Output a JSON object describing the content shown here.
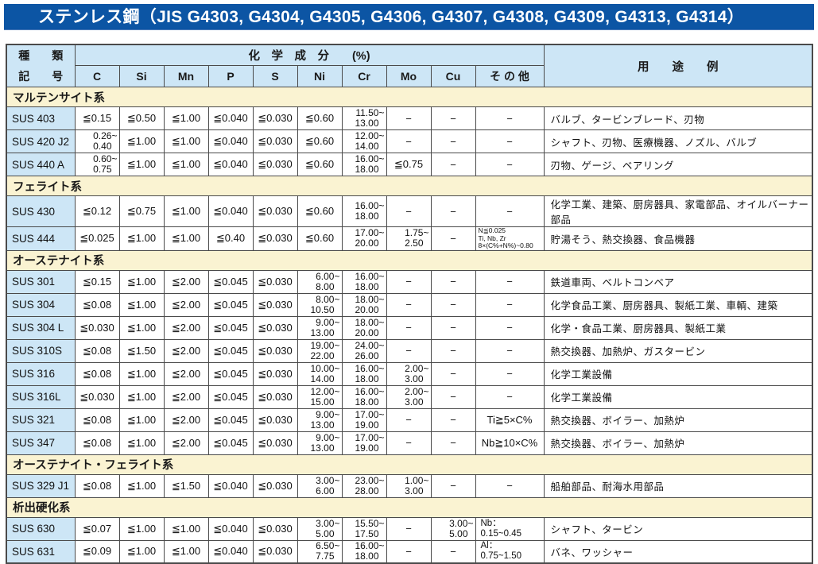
{
  "title": "ステンレス鋼（JIS G4303, G4304, G4305, G4306, G4307, G4308, G4309, G4313, G4314）",
  "colors": {
    "title_bar": "#0c55a4",
    "header_blue": "#cde6f6",
    "section_yellow": "#faf3d2",
    "border": "#4a4a4a"
  },
  "table": {
    "header": {
      "kind": "種　　類",
      "symbol": "記　　号",
      "chem": "化　学　成　分　　(%)",
      "use": "用　　途　　例",
      "elements": [
        "C",
        "Si",
        "Mn",
        "P",
        "S",
        "Ni",
        "Cr",
        "Mo",
        "Cu",
        "そ の 他"
      ]
    },
    "sections": [
      {
        "name": "マルテンサイト系",
        "rows": [
          {
            "code": "SUS 403",
            "c": "≦0.15",
            "si": "≦0.50",
            "mn": "≦1.00",
            "p": "≦0.040",
            "s": "≦0.030",
            "ni": "≦0.60",
            "cr": {
              "hi": "11.50~",
              "lo": "13.00"
            },
            "mo": "−",
            "cu": "−",
            "other": "−",
            "use": "バルブ、タービンブレード、刃物"
          },
          {
            "code": "SUS 420 J2",
            "c": {
              "hi": "0.26~",
              "lo": "0.40"
            },
            "si": "≦1.00",
            "mn": "≦1.00",
            "p": "≦0.040",
            "s": "≦0.030",
            "ni": "≦0.60",
            "cr": {
              "hi": "12.00~",
              "lo": "14.00"
            },
            "mo": "−",
            "cu": "−",
            "other": "−",
            "use": "シャフト、刃物、医療機器、ノズル、バルブ"
          },
          {
            "code": "SUS 440 A",
            "c": {
              "hi": "0.60~",
              "lo": "0.75"
            },
            "si": "≦1.00",
            "mn": "≦1.00",
            "p": "≦0.040",
            "s": "≦0.030",
            "ni": "≦0.60",
            "cr": {
              "hi": "16.00~",
              "lo": "18.00"
            },
            "mo": "≦0.75",
            "cu": "−",
            "other": "−",
            "use": "刃物、ゲージ、ベアリング"
          }
        ]
      },
      {
        "name": "フェライト系",
        "rows": [
          {
            "code": "SUS 430",
            "c": "≦0.12",
            "si": "≦0.75",
            "mn": "≦1.00",
            "p": "≦0.040",
            "s": "≦0.030",
            "ni": "≦0.60",
            "cr": {
              "hi": "16.00~",
              "lo": "18.00"
            },
            "mo": "−",
            "cu": "−",
            "other": "−",
            "use": "化学工業、建築、厨房器具、家電部品、オイルバーナー部品"
          },
          {
            "code": "SUS 444",
            "c": "≦0.025",
            "si": "≦1.00",
            "mn": "≦1.00",
            "p": "≦0.40",
            "s": "≦0.030",
            "ni": "≦0.60",
            "cr": {
              "hi": "17.00~",
              "lo": "20.00"
            },
            "mo": {
              "hi": "1.75~",
              "lo": "2.50"
            },
            "cu": "−",
            "other": {
              "lines": [
                "N≦0.025",
                "Ti, Nb, Zr",
                "8×(C%+N%)~0.80"
              ],
              "small": true
            },
            "use": "貯湯そう、熱交換器、食品機器"
          }
        ]
      },
      {
        "name": "オーステナイト系",
        "rows": [
          {
            "code": "SUS 301",
            "c": "≦0.15",
            "si": "≦1.00",
            "mn": "≦2.00",
            "p": "≦0.045",
            "s": "≦0.030",
            "ni": {
              "hi": "6.00~",
              "lo": "8.00"
            },
            "cr": {
              "hi": "16.00~",
              "lo": "18.00"
            },
            "mo": "−",
            "cu": "−",
            "other": "−",
            "use": "鉄道車両、ベルトコンベア"
          },
          {
            "code": "SUS 304",
            "c": "≦0.08",
            "si": "≦1.00",
            "mn": "≦2.00",
            "p": "≦0.045",
            "s": "≦0.030",
            "ni": {
              "hi": "8.00~",
              "lo": "10.50"
            },
            "cr": {
              "hi": "18.00~",
              "lo": "20.00"
            },
            "mo": "−",
            "cu": "−",
            "other": "−",
            "use": "化学食品工業、厨房器具、製紙工業、車輌、建築"
          },
          {
            "code": "SUS 304 L",
            "c": "≦0.030",
            "si": "≦1.00",
            "mn": "≦2.00",
            "p": "≦0.045",
            "s": "≦0.030",
            "ni": {
              "hi": "9.00~",
              "lo": "13.00"
            },
            "cr": {
              "hi": "18.00~",
              "lo": "20.00"
            },
            "mo": "−",
            "cu": "−",
            "other": "−",
            "use": "化学・食品工業、厨房器具、製紙工業"
          },
          {
            "code": "SUS 310S",
            "c": "≦0.08",
            "si": "≦1.50",
            "mn": "≦2.00",
            "p": "≦0.045",
            "s": "≦0.030",
            "ni": {
              "hi": "19.00~",
              "lo": "22.00"
            },
            "cr": {
              "hi": "24.00~",
              "lo": "26.00"
            },
            "mo": "−",
            "cu": "−",
            "other": "−",
            "use": "熱交換器、加熱炉、ガスタービン"
          },
          {
            "code": "SUS 316",
            "c": "≦0.08",
            "si": "≦1.00",
            "mn": "≦2.00",
            "p": "≦0.045",
            "s": "≦0.030",
            "ni": {
              "hi": "10.00~",
              "lo": "14.00"
            },
            "cr": {
              "hi": "16.00~",
              "lo": "18.00"
            },
            "mo": {
              "hi": "2.00~",
              "lo": "3.00"
            },
            "cu": "−",
            "other": "−",
            "use": "化学工業設備"
          },
          {
            "code": "SUS 316L",
            "c": "≦0.030",
            "si": "≦1.00",
            "mn": "≦2.00",
            "p": "≦0.045",
            "s": "≦0.030",
            "ni": {
              "hi": "12.00~",
              "lo": "15.00"
            },
            "cr": {
              "hi": "16.00~",
              "lo": "18.00"
            },
            "mo": {
              "hi": "2.00~",
              "lo": "3.00"
            },
            "cu": "−",
            "other": "−",
            "use": "化学工業設備"
          },
          {
            "code": "SUS 321",
            "c": "≦0.08",
            "si": "≦1.00",
            "mn": "≦2.00",
            "p": "≦0.045",
            "s": "≦0.030",
            "ni": {
              "hi": "9.00~",
              "lo": "13.00"
            },
            "cr": {
              "hi": "17.00~",
              "lo": "19.00"
            },
            "mo": "−",
            "cu": "−",
            "other": "Ti≧5×C%",
            "use": "熱交換器、ボイラー、加熱炉"
          },
          {
            "code": "SUS 347",
            "c": "≦0.08",
            "si": "≦1.00",
            "mn": "≦2.00",
            "p": "≦0.045",
            "s": "≦0.030",
            "ni": {
              "hi": "9.00~",
              "lo": "13.00"
            },
            "cr": {
              "hi": "17.00~",
              "lo": "19.00"
            },
            "mo": "−",
            "cu": "−",
            "other": "Nb≧10×C%",
            "use": "熱交換器、ボイラー、加熱炉"
          }
        ]
      },
      {
        "name": "オーステナイト・フェライト系",
        "rows": [
          {
            "code": "SUS 329 J1",
            "c": "≦0.08",
            "si": "≦1.00",
            "mn": "≦1.50",
            "p": "≦0.040",
            "s": "≦0.030",
            "ni": {
              "hi": "3.00~",
              "lo": "6.00"
            },
            "cr": {
              "hi": "23.00~",
              "lo": "28.00"
            },
            "mo": {
              "hi": "1.00~",
              "lo": "3.00"
            },
            "cu": "−",
            "other": "−",
            "use": "船舶部品、耐海水用部品"
          }
        ]
      },
      {
        "name": "析出硬化系",
        "rows": [
          {
            "code": "SUS 630",
            "c": "≦0.07",
            "si": "≦1.00",
            "mn": "≦1.00",
            "p": "≦0.040",
            "s": "≦0.030",
            "ni": {
              "hi": "3.00~",
              "lo": "5.00"
            },
            "cr": {
              "hi": "15.50~",
              "lo": "17.50"
            },
            "mo": "−",
            "cu": {
              "hi": "3.00~",
              "lo": "5.00"
            },
            "other": {
              "lines": [
                "Nb：",
                "0.15~0.45"
              ]
            },
            "use": "シャフト、タービン"
          },
          {
            "code": "SUS 631",
            "c": "≦0.09",
            "si": "≦1.00",
            "mn": "≦1.00",
            "p": "≦0.040",
            "s": "≦0.030",
            "ni": {
              "hi": "6.50~",
              "lo": "7.75"
            },
            "cr": {
              "hi": "16.00~",
              "lo": "18.00"
            },
            "mo": "−",
            "cu": "−",
            "other": {
              "lines": [
                "Al：",
                "0.75~1.50"
              ]
            },
            "use": "バネ、ワッシャー"
          }
        ]
      }
    ]
  }
}
